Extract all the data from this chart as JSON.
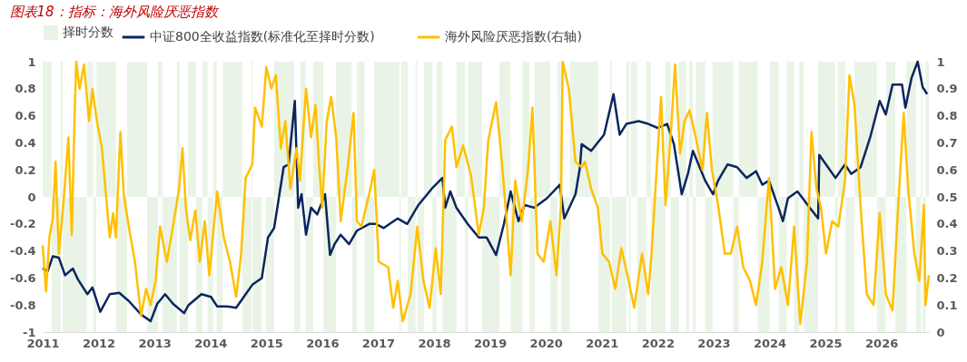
{
  "chart_data": {
    "type": "line",
    "title": "图表18：指标：海外风险厌恶指数",
    "xlim": [
      2011,
      2026.85
    ],
    "xticks": [
      2011,
      2012,
      2013,
      2014,
      2015,
      2016,
      2017,
      2018,
      2019,
      2020,
      2021,
      2022,
      2023,
      2024,
      2025,
      2026
    ],
    "ylim": [
      -1,
      1
    ],
    "yticks": [
      -1,
      -0.8,
      -0.6,
      -0.4,
      -0.2,
      0,
      0.2,
      0.4,
      0.6,
      0.8,
      1
    ],
    "y2lim": [
      0,
      1
    ],
    "y2ticks": [
      0,
      0.1,
      0.2,
      0.3,
      0.4,
      0.5,
      0.6,
      0.7,
      0.8,
      0.9,
      1
    ],
    "grid": false,
    "legend": "top",
    "series": [
      {
        "name": "择时分数",
        "type": "area",
        "color": "#eaf4e6",
        "x": [
          2011.0,
          2011.16,
          2011.32,
          2011.36,
          2011.79,
          2011.9,
          2011.96,
          2012.31,
          2012.51,
          2012.87,
          2013.06,
          2013.14,
          2013.4,
          2013.45,
          2013.6,
          2013.74,
          2013.86,
          2013.95,
          2014.05,
          2014.11,
          2014.22,
          2014.57,
          2014.74,
          2014.76,
          2014.92,
          2014.99,
          2015.14,
          2015.5,
          2015.61,
          2015.7,
          2015.84,
          2016.02,
          2016.25,
          2016.53,
          2016.62,
          2016.76,
          2016.93,
          2017.38,
          2017.41,
          2017.53,
          2017.67,
          2017.7,
          2017.82,
          2017.97,
          2018.05,
          2018.15,
          2018.4,
          2018.55,
          2018.61,
          2018.86,
          2019.17,
          2019.37,
          2019.58,
          2019.71,
          2019.8,
          2020.08,
          2020.21,
          2020.27,
          2020.43,
          2020.94,
          2021.15,
          2021.18,
          2021.44,
          2021.49,
          2021.52,
          2021.63,
          2021.8,
          2021.88,
          2022.14,
          2022.23,
          2022.38,
          2022.51,
          2022.56,
          2022.63,
          2022.68,
          2022.85,
          2022.98,
          2023.35,
          2023.45,
          2023.79,
          2024.0,
          2024.16,
          2024.31,
          2024.44,
          2024.53,
          2024.61,
          2024.87,
          2025.17,
          2025.22,
          2025.36,
          2025.52,
          2025.92,
          2026.08,
          2026.25,
          2026.45,
          2026.62,
          2026.71,
          2026.74,
          2026.79,
          2026.85
        ],
        "values": [
          1,
          -1,
          1,
          -1,
          1,
          -1,
          1,
          -1,
          1,
          -1,
          1,
          -1,
          1,
          -1,
          1,
          -1,
          1,
          -1,
          1,
          -1,
          1,
          -1,
          1,
          -1,
          0,
          -1,
          1,
          -1,
          1,
          -1,
          1,
          -1,
          1,
          -1,
          1,
          -1,
          1,
          -1,
          1,
          -1,
          1,
          -1,
          1,
          -1,
          1,
          -1,
          1,
          -1,
          1,
          -1,
          1,
          -1,
          1,
          -1,
          1,
          -1,
          1,
          -1,
          1,
          -1,
          1,
          -1,
          1,
          -1,
          1,
          -1,
          1,
          -1,
          1,
          -1,
          1,
          -1,
          1,
          -1,
          1,
          -1,
          1,
          -1,
          1,
          -1,
          1,
          -1,
          1,
          -1,
          1,
          -1,
          1,
          -1,
          1,
          -1,
          1,
          -1,
          1,
          -1,
          1,
          -1,
          1,
          -1,
          1,
          1
        ]
      },
      {
        "name": "中证800全收益指数(标准化至择时分数)",
        "color": "#0b2560",
        "x": [
          2011.0,
          2011.09,
          2011.18,
          2011.29,
          2011.4,
          2011.54,
          2011.63,
          2011.8,
          2011.89,
          2012.03,
          2012.2,
          2012.37,
          2012.54,
          2012.76,
          2012.93,
          2013.05,
          2013.19,
          2013.33,
          2013.53,
          2013.61,
          2013.84,
          2014.01,
          2014.12,
          2014.29,
          2014.46,
          2014.58,
          2014.75,
          2014.92,
          2015.03,
          2015.14,
          2015.31,
          2015.4,
          2015.51,
          2015.57,
          2015.63,
          2015.71,
          2015.8,
          2015.91,
          2016.05,
          2016.14,
          2016.22,
          2016.33,
          2016.48,
          2016.62,
          2016.84,
          2016.96,
          2017.1,
          2017.35,
          2017.52,
          2017.72,
          2017.98,
          2018.15,
          2018.2,
          2018.29,
          2018.4,
          2018.6,
          2018.8,
          2018.94,
          2019.11,
          2019.25,
          2019.37,
          2019.51,
          2019.62,
          2019.79,
          2020.02,
          2020.25,
          2020.33,
          2020.53,
          2020.61,
          2020.64,
          2020.81,
          2021.04,
          2021.21,
          2021.32,
          2021.44,
          2021.66,
          2021.83,
          2022.0,
          2022.17,
          2022.29,
          2022.43,
          2022.54,
          2022.63,
          2022.71,
          2022.85,
          2022.99,
          2023.08,
          2023.25,
          2023.42,
          2023.59,
          2023.76,
          2023.87,
          2023.99,
          2024.16,
          2024.24,
          2024.33,
          2024.5,
          2024.72,
          2024.87,
          2024.89,
          2025.01,
          2025.18,
          2025.35,
          2025.46,
          2025.63,
          2025.8,
          2025.97,
          2026.08,
          2026.2,
          2026.37,
          2026.43,
          2026.54,
          2026.65,
          2026.74,
          2026.82
        ],
        "values": [
          -0.53,
          -0.55,
          -0.44,
          -0.45,
          -0.58,
          -0.53,
          -0.61,
          -0.72,
          -0.67,
          -0.85,
          -0.72,
          -0.71,
          -0.77,
          -0.87,
          -0.92,
          -0.79,
          -0.72,
          -0.79,
          -0.86,
          -0.8,
          -0.72,
          -0.74,
          -0.81,
          -0.81,
          -0.82,
          -0.75,
          -0.65,
          -0.6,
          -0.3,
          -0.23,
          0.22,
          0.24,
          0.71,
          -0.08,
          0.02,
          -0.28,
          -0.08,
          -0.13,
          0.02,
          -0.43,
          -0.35,
          -0.28,
          -0.35,
          -0.25,
          -0.2,
          -0.2,
          -0.23,
          -0.16,
          -0.2,
          -0.06,
          0.07,
          0.14,
          -0.08,
          0.04,
          -0.08,
          -0.2,
          -0.3,
          -0.3,
          -0.43,
          -0.2,
          0.04,
          -0.18,
          -0.06,
          -0.08,
          -0.01,
          0.09,
          -0.16,
          0.02,
          0.22,
          0.39,
          0.34,
          0.46,
          0.76,
          0.46,
          0.54,
          0.56,
          0.54,
          0.51,
          0.54,
          0.39,
          0.02,
          0.17,
          0.34,
          0.26,
          0.12,
          0.02,
          0.12,
          0.24,
          0.22,
          0.14,
          0.19,
          0.09,
          0.12,
          -0.08,
          -0.18,
          -0.01,
          0.04,
          -0.08,
          -0.16,
          0.31,
          0.24,
          0.14,
          0.24,
          0.17,
          0.22,
          0.44,
          0.71,
          0.61,
          0.83,
          0.83,
          0.66,
          0.88,
          1.0,
          0.81,
          0.76
        ]
      },
      {
        "name": "海外风险厌恶指数(右轴)",
        "type": "line",
        "axis": "y2",
        "color": "#ffc000",
        "x": [
          2011.0,
          2011.06,
          2011.12,
          2011.18,
          2011.23,
          2011.29,
          2011.38,
          2011.46,
          2011.52,
          2011.57,
          2011.6,
          2011.66,
          2011.74,
          2011.83,
          2011.89,
          2011.97,
          2012.06,
          2012.11,
          2012.2,
          2012.26,
          2012.31,
          2012.39,
          2012.45,
          2012.54,
          2012.65,
          2012.76,
          2012.85,
          2012.93,
          2013.02,
          2013.1,
          2013.22,
          2013.33,
          2013.44,
          2013.5,
          2013.56,
          2013.64,
          2013.73,
          2013.81,
          2013.9,
          2013.98,
          2014.12,
          2014.24,
          2014.35,
          2014.46,
          2014.55,
          2014.63,
          2014.75,
          2014.8,
          2014.92,
          2015.0,
          2015.09,
          2015.17,
          2015.26,
          2015.34,
          2015.43,
          2015.54,
          2015.6,
          2015.71,
          2015.8,
          2015.88,
          2015.94,
          2016.0,
          2016.08,
          2016.16,
          2016.25,
          2016.33,
          2016.45,
          2016.56,
          2016.62,
          2016.7,
          2016.84,
          2016.93,
          2017.01,
          2017.18,
          2017.27,
          2017.35,
          2017.44,
          2017.58,
          2017.7,
          2017.81,
          2017.92,
          2018.03,
          2018.12,
          2018.2,
          2018.32,
          2018.4,
          2018.52,
          2018.66,
          2018.8,
          2018.89,
          2018.97,
          2019.11,
          2019.2,
          2019.28,
          2019.37,
          2019.45,
          2019.57,
          2019.68,
          2019.76,
          2019.85,
          2019.96,
          2020.08,
          2020.19,
          2020.27,
          2020.3,
          2020.41,
          2020.53,
          2020.64,
          2020.7,
          2020.81,
          2020.93,
          2021.01,
          2021.13,
          2021.24,
          2021.35,
          2021.46,
          2021.58,
          2021.72,
          2021.83,
          2021.89,
          2022.06,
          2022.14,
          2022.23,
          2022.31,
          2022.4,
          2022.48,
          2022.57,
          2022.68,
          2022.8,
          2022.88,
          2022.97,
          2023.08,
          2023.2,
          2023.31,
          2023.42,
          2023.53,
          2023.65,
          2023.76,
          2023.87,
          2023.99,
          2024.1,
          2024.21,
          2024.33,
          2024.44,
          2024.55,
          2024.67,
          2024.75,
          2024.84,
          2024.92,
          2025.01,
          2025.12,
          2025.23,
          2025.35,
          2025.43,
          2025.52,
          2025.63,
          2025.74,
          2025.86,
          2025.97,
          2026.08,
          2026.2,
          2026.28,
          2026.4,
          2026.48,
          2026.59,
          2026.68,
          2026.76,
          2026.79,
          2026.85
        ],
        "values": [
          0.32,
          0.15,
          0.35,
          0.42,
          0.63,
          0.29,
          0.5,
          0.72,
          0.36,
          0.79,
          1.0,
          0.9,
          0.99,
          0.78,
          0.9,
          0.78,
          0.68,
          0.56,
          0.35,
          0.44,
          0.35,
          0.74,
          0.51,
          0.39,
          0.26,
          0.06,
          0.16,
          0.1,
          0.19,
          0.39,
          0.26,
          0.39,
          0.53,
          0.68,
          0.46,
          0.34,
          0.45,
          0.26,
          0.41,
          0.21,
          0.52,
          0.35,
          0.26,
          0.13,
          0.29,
          0.57,
          0.62,
          0.83,
          0.76,
          0.98,
          0.9,
          0.95,
          0.68,
          0.78,
          0.53,
          0.68,
          0.56,
          0.9,
          0.72,
          0.84,
          0.63,
          0.46,
          0.78,
          0.87,
          0.72,
          0.41,
          0.6,
          0.81,
          0.41,
          0.39,
          0.51,
          0.6,
          0.26,
          0.24,
          0.09,
          0.19,
          0.04,
          0.14,
          0.39,
          0.19,
          0.09,
          0.31,
          0.14,
          0.71,
          0.76,
          0.61,
          0.69,
          0.58,
          0.36,
          0.46,
          0.71,
          0.85,
          0.66,
          0.46,
          0.21,
          0.56,
          0.41,
          0.6,
          0.83,
          0.29,
          0.26,
          0.41,
          0.21,
          0.47,
          1.0,
          0.9,
          0.63,
          0.61,
          0.63,
          0.53,
          0.46,
          0.29,
          0.26,
          0.16,
          0.31,
          0.21,
          0.09,
          0.29,
          0.14,
          0.29,
          0.87,
          0.47,
          0.72,
          0.99,
          0.66,
          0.78,
          0.82,
          0.72,
          0.6,
          0.81,
          0.6,
          0.47,
          0.29,
          0.29,
          0.39,
          0.24,
          0.19,
          0.1,
          0.26,
          0.57,
          0.16,
          0.24,
          0.1,
          0.39,
          0.03,
          0.26,
          0.74,
          0.53,
          0.46,
          0.29,
          0.41,
          0.39,
          0.56,
          0.95,
          0.84,
          0.46,
          0.14,
          0.1,
          0.44,
          0.14,
          0.08,
          0.39,
          0.81,
          0.53,
          0.29,
          0.19,
          0.47,
          0.1,
          0.21
        ]
      }
    ]
  }
}
